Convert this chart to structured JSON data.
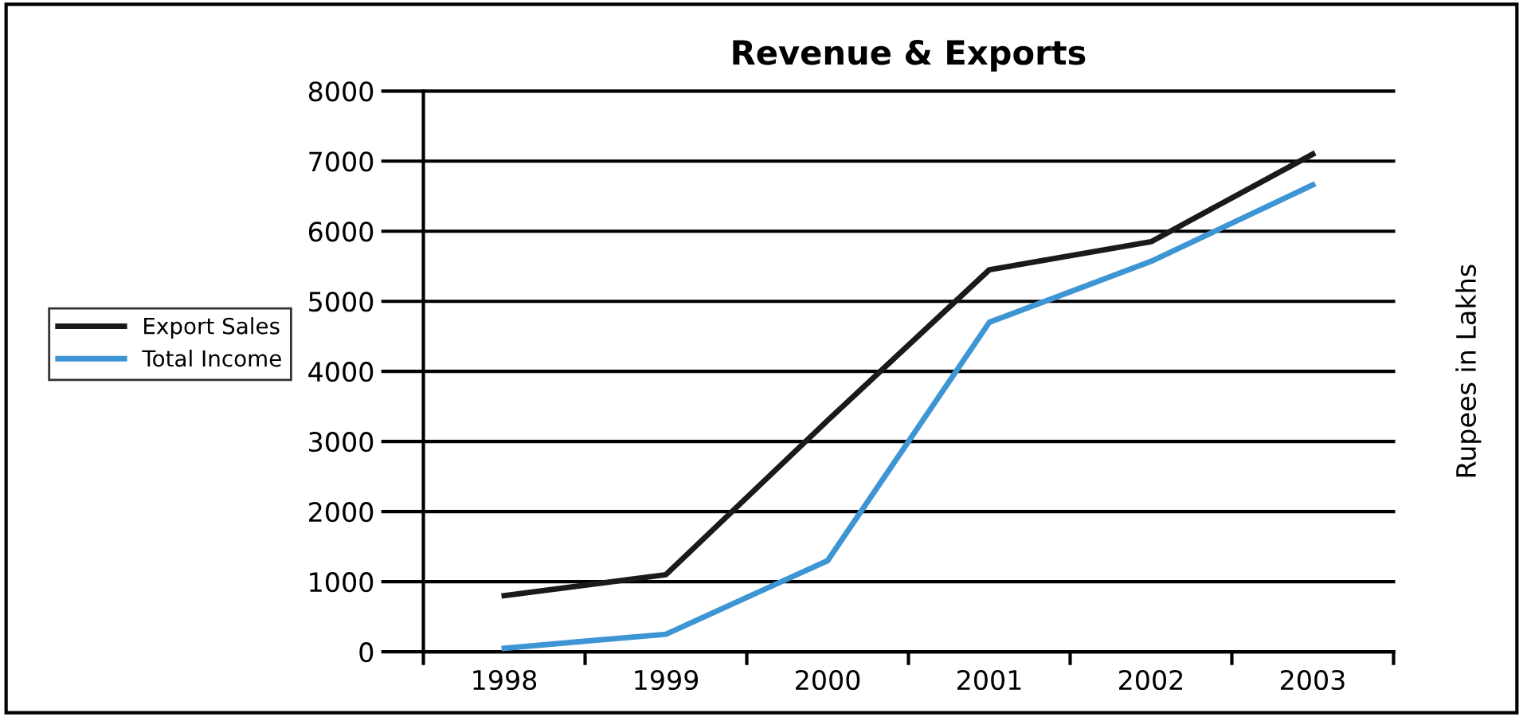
{
  "chart_data": {
    "type": "line",
    "title": "Revenue & Exports",
    "ylabel": "Rupees in Lakhs",
    "categories": [
      "1998",
      "1999",
      "2000",
      "2001",
      "2002",
      "2003"
    ],
    "series": [
      {
        "name": "Export Sales",
        "color": "#1a1a1a",
        "values": [
          800,
          1100,
          3300,
          5450,
          5850,
          7100
        ]
      },
      {
        "name": "Total Income",
        "color": "#3d95d4",
        "values": [
          50,
          250,
          1300,
          4700,
          5570,
          6660
        ]
      }
    ],
    "ylim": [
      0,
      8000
    ],
    "yticks": [
      0,
      1000,
      2000,
      3000,
      4000,
      5000,
      6000,
      7000,
      8000
    ],
    "grid": "y",
    "legend": "left",
    "marker": "none",
    "line_style": "solid"
  }
}
